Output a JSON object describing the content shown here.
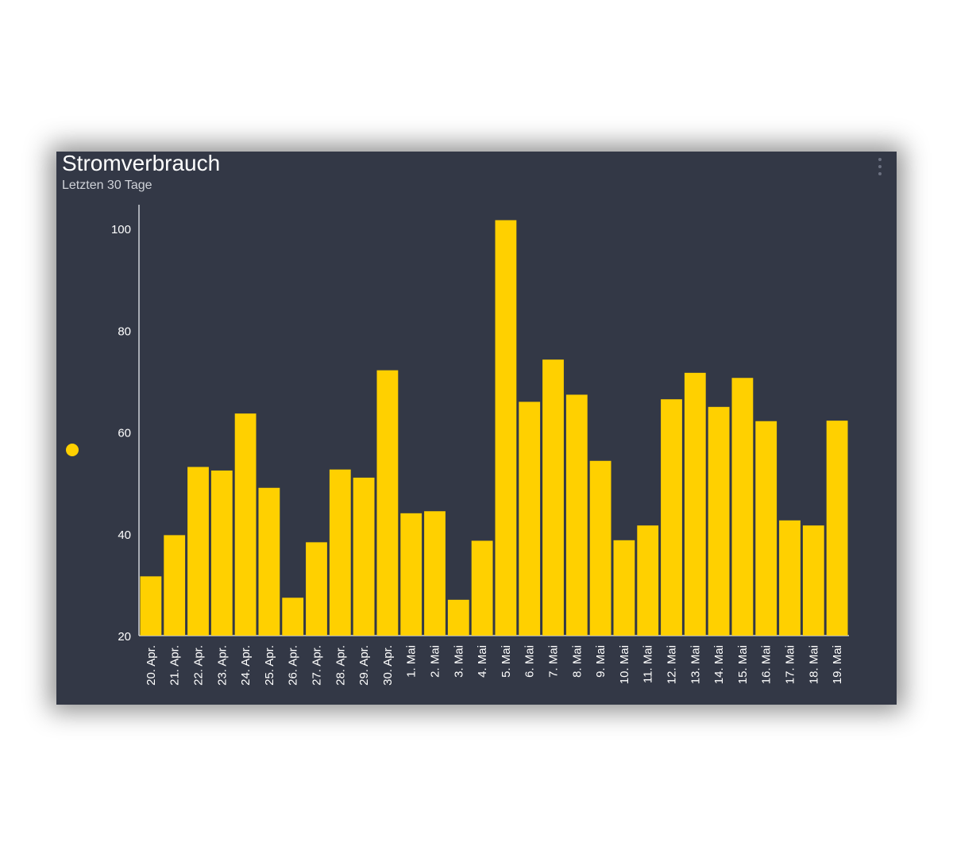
{
  "card": {
    "title": "Stromverbrauch",
    "subtitle": "Letzten 30 Tage",
    "menu_icon": "vertical-ellipsis-icon"
  },
  "colors": {
    "background": "#333846",
    "bar": "#FFD000",
    "axis": "#cfd2d8",
    "text": "#ffffff"
  },
  "chart_data": {
    "type": "bar",
    "title": "Stromverbrauch",
    "subtitle": "Letzten 30 Tage",
    "xlabel": "",
    "ylabel": "",
    "ylim": [
      20,
      105
    ],
    "yticks": [
      20,
      40,
      60,
      80,
      100
    ],
    "grid": false,
    "legend": "left",
    "categories": [
      "20. Apr.",
      "21. Apr.",
      "22. Apr.",
      "23. Apr.",
      "24. Apr.",
      "25. Apr.",
      "26. Apr.",
      "27. Apr.",
      "28. Apr.",
      "29. Apr.",
      "30. Apr.",
      "1. Mai",
      "2. Mai",
      "3. Mai",
      "4. Mai",
      "5. Mai",
      "6. Mai",
      "7. Mai",
      "8. Mai",
      "9. Mai",
      "10. Mai",
      "11. Mai",
      "12. Mai",
      "13. Mai",
      "14. Mai",
      "15. Mai",
      "16. Mai",
      "17. Mai",
      "18. Mai",
      "19. Mai"
    ],
    "values": [
      31.8,
      39.9,
      53.3,
      52.6,
      63.8,
      49.2,
      27.6,
      38.5,
      52.8,
      51.2,
      72.3,
      44.2,
      44.6,
      27.2,
      38.8,
      101.8,
      66.1,
      74.4,
      67.5,
      54.5,
      38.9,
      41.8,
      66.6,
      71.8,
      65.1,
      70.8,
      62.3,
      42.8,
      41.8,
      62.4
    ]
  }
}
